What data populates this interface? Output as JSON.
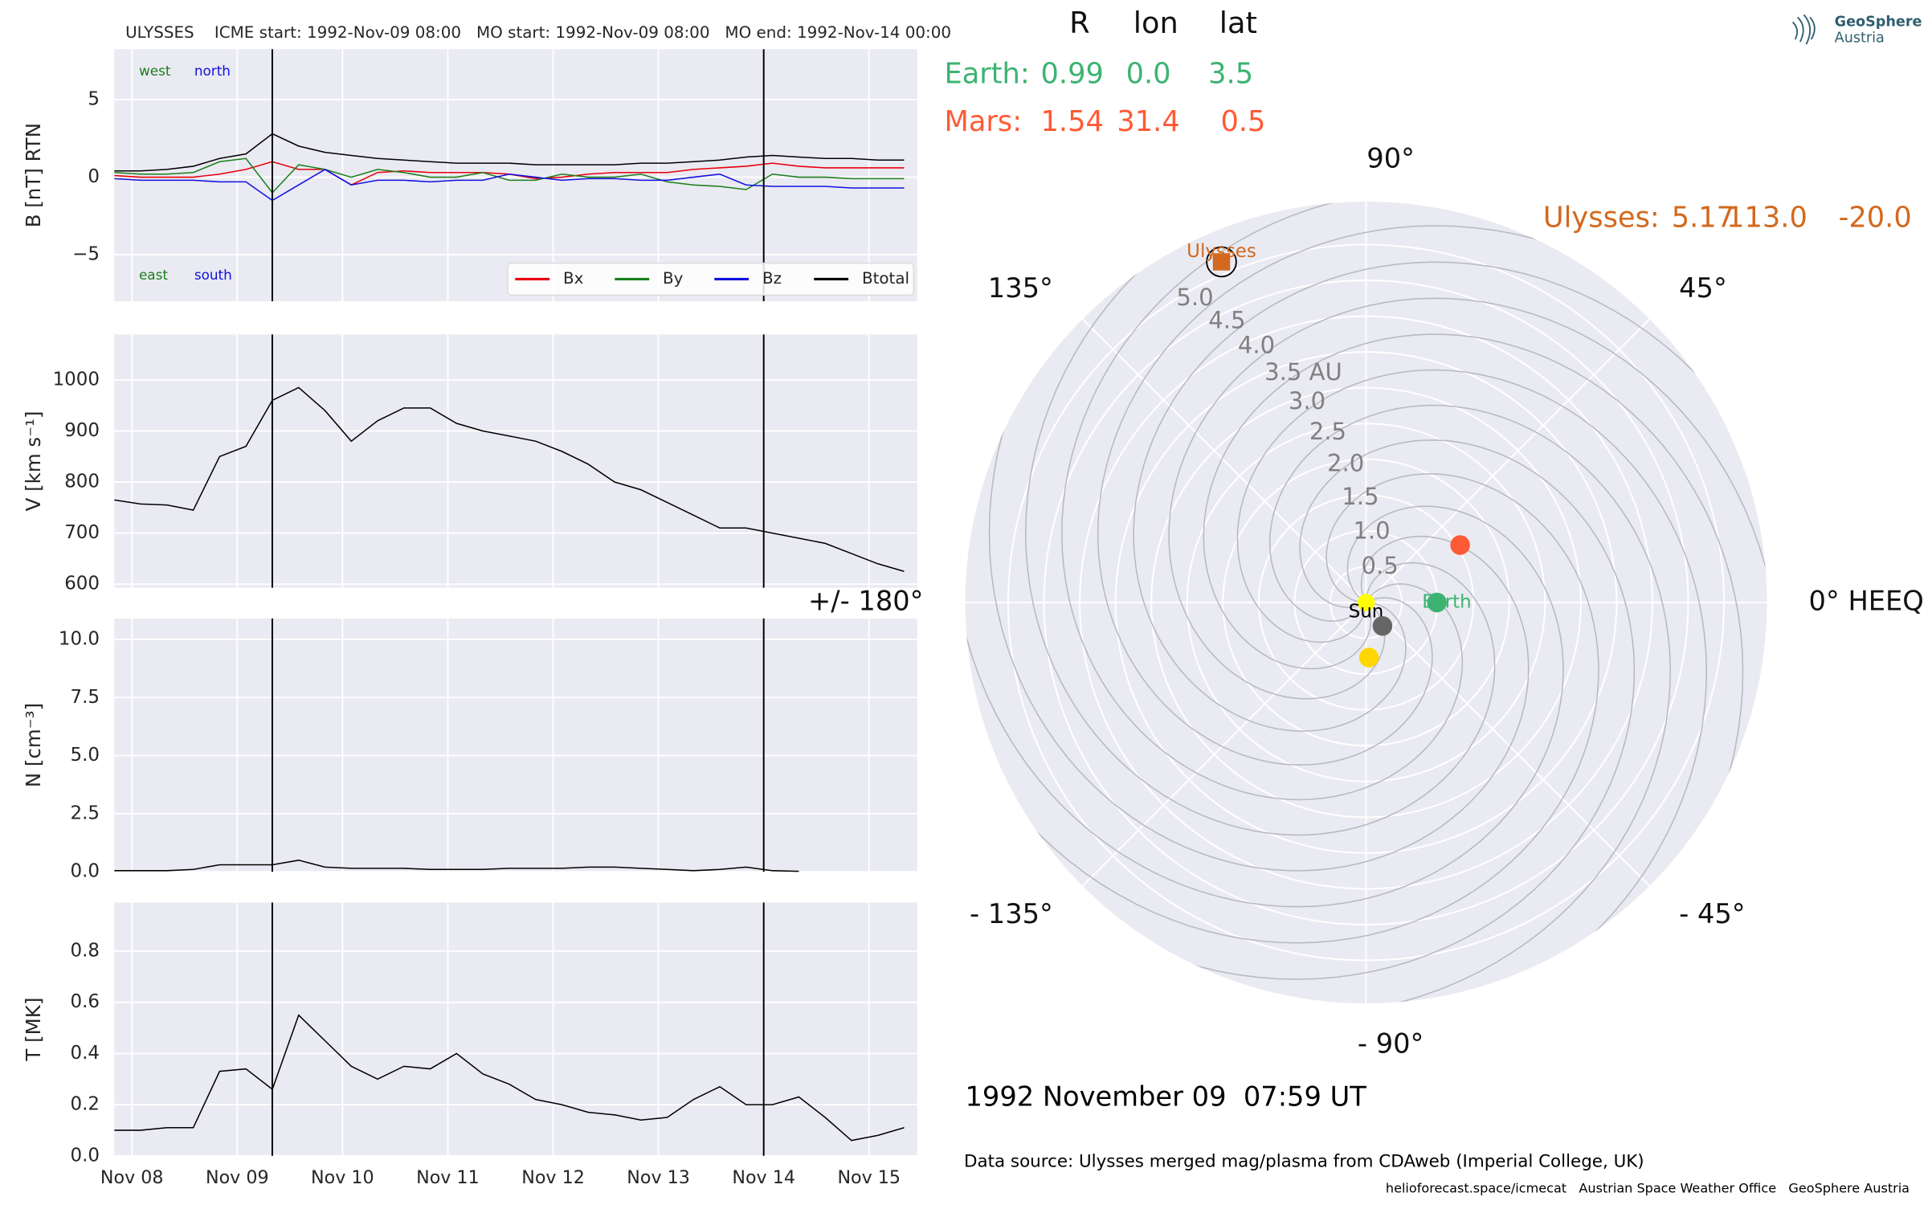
{
  "chart_data": [
    {
      "type": "line",
      "title": "ULYSSES    ICME start: 1992-Nov-09 08:00   MO start: 1992-Nov-09 08:00   MO end: 1992-Nov-14 00:00",
      "ylabel": "B [nT] RTN",
      "x": [
        "1992-11-07T20:00",
        "1992-11-08T02:00",
        "1992-11-08T08:00",
        "1992-11-08T14:00",
        "1992-11-08T20:00",
        "1992-11-09T02:00",
        "1992-11-09T08:00",
        "1992-11-09T14:00",
        "1992-11-09T20:00",
        "1992-11-10T02:00",
        "1992-11-10T08:00",
        "1992-11-10T14:00",
        "1992-11-10T20:00",
        "1992-11-11T02:00",
        "1992-11-11T08:00",
        "1992-11-11T14:00",
        "1992-11-11T20:00",
        "1992-11-12T02:00",
        "1992-11-12T08:00",
        "1992-11-12T14:00",
        "1992-11-12T20:00",
        "1992-11-13T02:00",
        "1992-11-13T08:00",
        "1992-11-13T14:00",
        "1992-11-13T20:00",
        "1992-11-14T02:00",
        "1992-11-14T08:00",
        "1992-11-14T14:00",
        "1992-11-14T20:00",
        "1992-11-15T02:00",
        "1992-11-15T08:00"
      ],
      "series": [
        {
          "name": "Bx",
          "color": "#e8000b",
          "values": [
            0.1,
            0.0,
            0.0,
            0.0,
            0.2,
            0.5,
            1.0,
            0.5,
            0.5,
            -0.5,
            0.3,
            0.4,
            0.3,
            0.3,
            0.3,
            0.2,
            -0.1,
            0.0,
            0.2,
            0.3,
            0.3,
            0.3,
            0.5,
            0.6,
            0.7,
            0.9,
            0.7,
            0.6,
            0.6,
            0.6,
            0.6
          ]
        },
        {
          "name": "By",
          "color": "#1a7f1a",
          "values": [
            0.3,
            0.2,
            0.2,
            0.3,
            1.0,
            1.2,
            -1.0,
            0.8,
            0.5,
            0.0,
            0.5,
            0.3,
            0.0,
            0.0,
            0.3,
            -0.2,
            -0.2,
            0.2,
            0.0,
            0.0,
            0.2,
            -0.3,
            -0.5,
            -0.6,
            -0.8,
            0.2,
            0.0,
            0.0,
            -0.1,
            -0.1,
            -0.1
          ]
        },
        {
          "name": "Bz",
          "color": "#1010e0",
          "values": [
            -0.1,
            -0.2,
            -0.2,
            -0.2,
            -0.3,
            -0.3,
            -1.5,
            -0.5,
            0.5,
            -0.5,
            -0.2,
            -0.2,
            -0.3,
            -0.2,
            -0.2,
            0.2,
            0.0,
            -0.2,
            -0.1,
            -0.1,
            -0.2,
            -0.2,
            0.0,
            0.2,
            -0.5,
            -0.6,
            -0.6,
            -0.6,
            -0.7,
            -0.7,
            -0.7
          ]
        },
        {
          "name": "Btotal",
          "color": "#000000",
          "values": [
            0.4,
            0.4,
            0.5,
            0.7,
            1.2,
            1.5,
            2.8,
            2.0,
            1.6,
            1.4,
            1.2,
            1.1,
            1.0,
            0.9,
            0.9,
            0.9,
            0.8,
            0.8,
            0.8,
            0.8,
            0.9,
            0.9,
            1.0,
            1.1,
            1.3,
            1.4,
            1.3,
            1.2,
            1.2,
            1.1,
            1.1
          ]
        }
      ],
      "annotations": [
        {
          "text": "west",
          "color": "#1a7f1a"
        },
        {
          "text": "north",
          "color": "#1010e0"
        },
        {
          "text": "east",
          "color": "#1a7f1a"
        },
        {
          "text": "south",
          "color": "#1010e0"
        }
      ],
      "xlim": [
        "1992-11-07T20:00",
        "1992-11-15T11:00"
      ],
      "xticks": [
        "1992-11-08",
        "1992-11-09",
        "1992-11-10",
        "1992-11-11",
        "1992-11-12",
        "1992-11-13",
        "1992-11-14",
        "1992-11-15"
      ],
      "ylim": [
        -8,
        8.25
      ],
      "yticks": [
        {
          "value": -5,
          "label": "−5"
        },
        0,
        5
      ],
      "vlines": [
        "1992-11-09T08:00",
        "1992-11-14T00:00"
      ],
      "grid": true,
      "legend": "lower right"
    },
    {
      "type": "line",
      "ylabel": "V [km s⁻¹]",
      "color": "#000000",
      "x": [
        "1992-11-07T20:00",
        "1992-11-08T02:00",
        "1992-11-08T08:00",
        "1992-11-08T14:00",
        "1992-11-08T20:00",
        "1992-11-09T02:00",
        "1992-11-09T08:00",
        "1992-11-09T14:00",
        "1992-11-09T20:00",
        "1992-11-10T02:00",
        "1992-11-10T08:00",
        "1992-11-10T14:00",
        "1992-11-10T20:00",
        "1992-11-11T02:00",
        "1992-11-11T08:00",
        "1992-11-11T14:00",
        "1992-11-11T20:00",
        "1992-11-12T02:00",
        "1992-11-12T08:00",
        "1992-11-12T14:00",
        "1992-11-12T20:00",
        "1992-11-13T02:00",
        "1992-11-13T08:00",
        "1992-11-13T14:00",
        "1992-11-13T20:00",
        "1992-11-14T02:00",
        "1992-11-14T08:00",
        "1992-11-14T14:00",
        "1992-11-14T20:00",
        "1992-11-15T02:00",
        "1992-11-15T08:00"
      ],
      "values": [
        765,
        757,
        755,
        745,
        850,
        870,
        960,
        985,
        940,
        880,
        920,
        945,
        945,
        915,
        900,
        890,
        880,
        860,
        835,
        800,
        785,
        760,
        735,
        710,
        710,
        700,
        690,
        680,
        660,
        640,
        625
      ],
      "xlim": [
        "1992-11-07T20:00",
        "1992-11-15T11:00"
      ],
      "xticks": [
        "1992-11-08",
        "1992-11-09",
        "1992-11-10",
        "1992-11-11",
        "1992-11-12",
        "1992-11-13",
        "1992-11-14",
        "1992-11-15"
      ],
      "ylim": [
        593,
        1089
      ],
      "yticks": [
        600,
        700,
        800,
        900,
        1000
      ],
      "vlines": [
        "1992-11-09T08:00",
        "1992-11-14T00:00"
      ],
      "grid": true
    },
    {
      "type": "line",
      "ylabel": "N [cm⁻³]",
      "color": "#000000",
      "x": [
        "1992-11-07T20:00",
        "1992-11-08T02:00",
        "1992-11-08T08:00",
        "1992-11-08T14:00",
        "1992-11-08T20:00",
        "1992-11-09T02:00",
        "1992-11-09T08:00",
        "1992-11-09T14:00",
        "1992-11-09T20:00",
        "1992-11-10T02:00",
        "1992-11-10T08:00",
        "1992-11-10T14:00",
        "1992-11-10T20:00",
        "1992-11-11T02:00",
        "1992-11-11T08:00",
        "1992-11-11T14:00",
        "1992-11-11T20:00",
        "1992-11-12T02:00",
        "1992-11-12T08:00",
        "1992-11-12T14:00",
        "1992-11-12T20:00",
        "1992-11-13T02:00",
        "1992-11-13T08:00",
        "1992-11-13T14:00",
        "1992-11-13T20:00",
        "1992-11-14T02:00",
        "1992-11-14T08:00",
        "1992-11-14T14:00",
        "1992-11-14T20:00",
        "1992-11-15T02:00",
        "1992-11-15T08:00"
      ],
      "values": [
        0.05,
        0.05,
        0.05,
        0.1,
        0.3,
        0.3,
        0.3,
        0.5,
        0.2,
        0.15,
        0.15,
        0.15,
        0.1,
        0.1,
        0.1,
        0.15,
        0.15,
        0.15,
        0.2,
        0.2,
        0.15,
        0.1,
        0.05,
        0.1,
        0.2,
        0.05,
        0.02,
        null,
        null,
        null,
        null
      ],
      "xlim": [
        "1992-11-07T20:00",
        "1992-11-15T11:00"
      ],
      "xticks": [
        "1992-11-08",
        "1992-11-09",
        "1992-11-10",
        "1992-11-11",
        "1992-11-12",
        "1992-11-13",
        "1992-11-14",
        "1992-11-15"
      ],
      "ylim": [
        0,
        10.9
      ],
      "yticks": [
        {
          "value": 0,
          "label": "0.0"
        },
        2.5,
        {
          "value": 5,
          "label": "5.0"
        },
        7.5,
        {
          "value": 10,
          "label": "10.0"
        }
      ],
      "vlines": [
        "1992-11-09T08:00",
        "1992-11-14T00:00"
      ],
      "grid": true
    },
    {
      "type": "line",
      "ylabel": "T [MK]",
      "color": "#000000",
      "x": [
        "1992-11-07T20:00",
        "1992-11-08T02:00",
        "1992-11-08T08:00",
        "1992-11-08T14:00",
        "1992-11-08T20:00",
        "1992-11-09T02:00",
        "1992-11-09T08:00",
        "1992-11-09T14:00",
        "1992-11-09T20:00",
        "1992-11-10T02:00",
        "1992-11-10T08:00",
        "1992-11-10T14:00",
        "1992-11-10T20:00",
        "1992-11-11T02:00",
        "1992-11-11T08:00",
        "1992-11-11T14:00",
        "1992-11-11T20:00",
        "1992-11-12T02:00",
        "1992-11-12T08:00",
        "1992-11-12T14:00",
        "1992-11-12T20:00",
        "1992-11-13T02:00",
        "1992-11-13T08:00",
        "1992-11-13T14:00",
        "1992-11-13T20:00",
        "1992-11-14T02:00",
        "1992-11-14T08:00",
        "1992-11-14T14:00",
        "1992-11-14T20:00",
        "1992-11-15T02:00",
        "1992-11-15T08:00"
      ],
      "values": [
        0.1,
        0.1,
        0.11,
        0.11,
        0.33,
        0.34,
        0.26,
        0.55,
        0.45,
        0.35,
        0.3,
        0.35,
        0.34,
        0.4,
        0.32,
        0.28,
        0.22,
        0.2,
        0.17,
        0.16,
        0.14,
        0.15,
        0.22,
        0.27,
        0.2,
        0.2,
        0.23,
        0.15,
        0.06,
        0.08,
        0.11
      ],
      "xlim": [
        "1992-11-07T20:00",
        "1992-11-15T11:00"
      ],
      "xticks": [
        {
          "value": "1992-11-08",
          "label": "Nov 08"
        },
        {
          "value": "1992-11-09",
          "label": "Nov 09"
        },
        {
          "value": "1992-11-10",
          "label": "Nov 10"
        },
        {
          "value": "1992-11-11",
          "label": "Nov 11"
        },
        {
          "value": "1992-11-12",
          "label": "Nov 12"
        },
        {
          "value": "1992-11-13",
          "label": "Nov 13"
        },
        {
          "value": "1992-11-14",
          "label": "Nov 14"
        },
        {
          "value": "1992-11-15",
          "label": "Nov 15"
        }
      ],
      "ylim": [
        0,
        0.99
      ],
      "yticks": [
        {
          "value": 0,
          "label": "0.0"
        },
        0.2,
        0.4,
        0.6,
        0.8
      ],
      "vlines": [
        "1992-11-09T08:00",
        "1992-11-14T00:00"
      ],
      "grid": true
    },
    {
      "type": "polar",
      "columns": [
        "R",
        "lon",
        "lat"
      ],
      "rows": [
        {
          "label": "Earth:",
          "name": "Earth",
          "color": "#3cb371",
          "values": [
            0.99,
            0.0,
            3.5
          ],
          "value_labels": [
            "0.99",
            "0.0",
            "3.5"
          ]
        },
        {
          "label": "Mars:",
          "color": "#ff5a36",
          "values": [
            1.54,
            31.4,
            0.5
          ],
          "value_labels": [
            "1.54",
            "31.4",
            "0.5"
          ]
        },
        {
          "label": "Ulysses:",
          "name": "Ulysses",
          "color": "#d2691e",
          "values": [
            5.17,
            113.0,
            -20.0
          ],
          "value_labels": [
            "5.17",
            "113.0",
            "-20.0"
          ]
        }
      ],
      "bodies": [
        {
          "name": "Sun",
          "color": "#ffff00",
          "r": 0,
          "lon": 0
        },
        {
          "color": "#666666",
          "r": 0.4,
          "lon": -55
        },
        {
          "color": "#ffd700",
          "r": 0.77,
          "lon": -87
        }
      ],
      "rlim": [
        0,
        5.6
      ],
      "rticks": [
        0.5,
        {
          "value": 1,
          "label": "1.0"
        },
        1.5,
        {
          "value": 2,
          "label": "2.0"
        },
        2.5,
        {
          "value": 3,
          "label": "3.0"
        },
        {
          "value": 3.5,
          "label": "3.5 AU"
        },
        {
          "value": 4,
          "label": "4.0"
        },
        4.5,
        {
          "value": 5,
          "label": "5.0"
        }
      ],
      "thetaticks": [
        {
          "value": 0,
          "label": "0° HEEQ"
        },
        {
          "value": 45,
          "label": "45°"
        },
        {
          "value": 90,
          "label": "90°"
        },
        {
          "value": 135,
          "label": "135°"
        },
        {
          "value": 180,
          "label": "+/- 180°"
        },
        {
          "value": -135,
          "label": "- 135°"
        },
        {
          "value": -90,
          "label": "- 90°"
        },
        {
          "value": -45,
          "label": "- 45°"
        }
      ],
      "grid": true
    }
  ],
  "date_label": "1992 November 09  07:59 UT",
  "source": "Data source: Ulysses merged mag/plasma from CDAweb (Imperial College, UK)",
  "credits": "helioforecast.space/icmecat   Austrian Space Weather Office   GeoSphere Austria",
  "logo": [
    "GeoSphere",
    "Austria"
  ]
}
